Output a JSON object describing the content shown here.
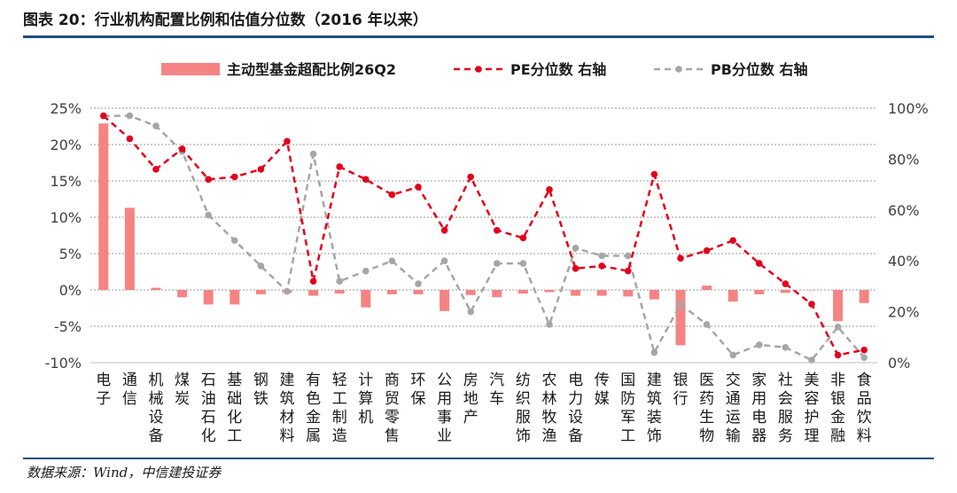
{
  "header": {
    "title": "图表 20：行业机构配置比例和估值分位数（2016 年以来）"
  },
  "footer": {
    "source": "数据来源：Wind，中信建投证券"
  },
  "colors": {
    "bar": "#f48484",
    "pe": "#e3001b",
    "pb": "#a6a6a6",
    "rule": "#1f4e79",
    "grid": "#999999"
  },
  "chart_data": {
    "type": "bar",
    "categories": [
      "电子",
      "通信",
      "机械设备",
      "煤炭",
      "石油石化",
      "基础化工",
      "钢铁",
      "建筑材料",
      "有色金属",
      "轻工制造",
      "计算机",
      "商贸零售",
      "环保",
      "公用事业",
      "房地产",
      "汽车",
      "纺织服饰",
      "农林牧渔",
      "电力设备",
      "传媒",
      "国防军工",
      "建筑装饰",
      "银行",
      "医药生物",
      "交通运输",
      "家用电器",
      "社会服务",
      "美容护理",
      "非银金融",
      "食品饮料"
    ],
    "series": [
      {
        "name": "主动型基金超配比例26Q2",
        "type": "bar",
        "axis": "left",
        "values": [
          22.9,
          11.3,
          0.3,
          -1.0,
          -2.0,
          -2.0,
          -0.6,
          -0.4,
          -0.8,
          -0.5,
          -2.4,
          -0.6,
          -0.6,
          -2.9,
          -0.7,
          -1.0,
          -0.5,
          -0.3,
          -0.8,
          -0.8,
          -0.9,
          -1.3,
          -7.6,
          0.6,
          -1.6,
          -0.6,
          -0.4,
          0.0,
          -4.3,
          -1.8
        ]
      },
      {
        "name": "PE分位数 右轴",
        "type": "line",
        "axis": "right",
        "values": [
          97,
          88,
          76,
          84,
          72,
          73,
          76,
          87,
          32,
          77,
          72,
          66,
          69,
          52,
          73,
          52,
          49,
          68,
          37,
          38,
          36,
          74,
          41,
          44,
          48,
          39,
          31,
          23,
          3,
          5
        ]
      },
      {
        "name": "PB分位数 右轴",
        "type": "line",
        "axis": "right",
        "values": [
          97,
          97,
          93,
          83,
          58,
          48,
          38,
          28,
          82,
          32,
          36,
          40,
          31,
          40,
          20,
          39,
          39,
          15,
          45,
          42,
          42,
          4,
          23,
          15,
          3,
          7,
          6,
          1,
          14,
          2
        ]
      }
    ],
    "y_left": {
      "ticks": [
        "25%",
        "20%",
        "15%",
        "10%",
        "5%",
        "0%",
        "-5%",
        "-10%"
      ],
      "min": -10,
      "max": 25
    },
    "y_right": {
      "ticks": [
        "100%",
        "80%",
        "60%",
        "40%",
        "20%",
        "0%"
      ],
      "min": 0,
      "max": 100
    },
    "grid": true,
    "legend": "top"
  }
}
